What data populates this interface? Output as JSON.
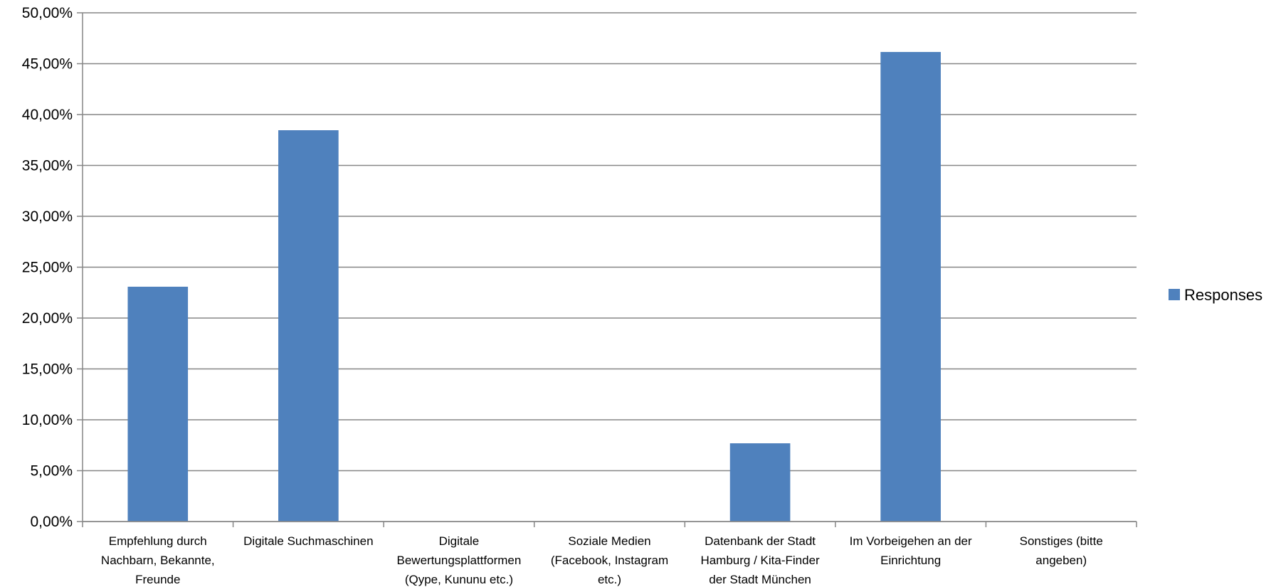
{
  "chart_data": {
    "type": "bar",
    "categories": [
      [
        "Empfehlung durch",
        "Nachbarn, Bekannte,",
        "Freunde"
      ],
      [
        "Digitale Suchmaschinen"
      ],
      [
        "Digitale",
        "Bewertungsplattformen",
        "(Qype, Kununu etc.)"
      ],
      [
        "Soziale Medien",
        "(Facebook, Instagram",
        "etc.)"
      ],
      [
        "Datenbank der Stadt",
        "Hamburg / Kita-Finder",
        "der Stadt München"
      ],
      [
        "Im Vorbeigehen an der",
        "Einrichtung"
      ],
      [
        "Sonstiges (bitte",
        "angeben)"
      ]
    ],
    "series": [
      {
        "name": "Responses",
        "values": [
          23.08,
          38.46,
          0,
          0,
          7.69,
          46.15,
          0
        ],
        "color": "#4f81bd"
      }
    ],
    "ylim": [
      0,
      50
    ],
    "yticks": [
      "0,00%",
      "5,00%",
      "10,00%",
      "15,00%",
      "20,00%",
      "25,00%",
      "30,00%",
      "35,00%",
      "40,00%",
      "45,00%",
      "50,00%"
    ],
    "grid": true,
    "legend_position": "right"
  }
}
